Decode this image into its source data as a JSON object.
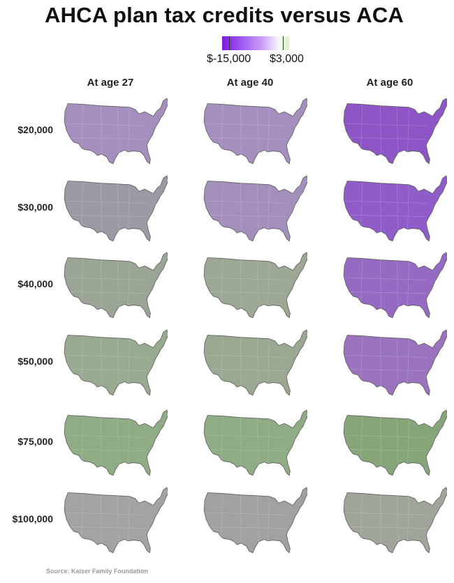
{
  "title": "AHCA plan tax credits versus ACA",
  "legend": {
    "min_label": "$-15,000",
    "max_label": "$3,000",
    "colors": {
      "low": "#7e1be0",
      "zero": "#f5eefc",
      "high": "#d6f5c8"
    }
  },
  "columns": [
    "At age 27",
    "At age 40",
    "At age 60"
  ],
  "rows": [
    "$20,000",
    "$30,000",
    "$40,000",
    "$50,000",
    "$75,000",
    "$100,000"
  ],
  "map_fills": [
    [
      "#a48fbf",
      "#a48fbf",
      "#8e55c6"
    ],
    [
      "#9d9aa5",
      "#a38fbb",
      "#8f5cc9"
    ],
    [
      "#9aa596",
      "#9ca794",
      "#966ac2"
    ],
    [
      "#98aa90",
      "#9aa892",
      "#9a72be"
    ],
    [
      "#8fac85",
      "#8fac85",
      "#86a679"
    ],
    [
      "#a3a3a3",
      "#a1a1a1",
      "#a0a59c"
    ]
  ],
  "source": "Source: Kaiser Family Foundation"
}
